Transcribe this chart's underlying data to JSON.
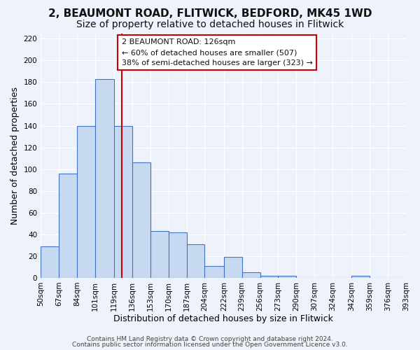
{
  "title_line1": "2, BEAUMONT ROAD, FLITWICK, BEDFORD, MK45 1WD",
  "title_line2": "Size of property relative to detached houses in Flitwick",
  "xlabel": "Distribution of detached houses by size in Flitwick",
  "ylabel": "Number of detached properties",
  "bar_values": [
    29,
    96,
    140,
    183,
    140,
    106,
    43,
    42,
    31,
    11,
    19,
    5,
    2,
    2,
    0,
    0,
    0,
    2,
    0,
    0
  ],
  "bin_edges": [
    50,
    67,
    84,
    101,
    119,
    136,
    153,
    170,
    187,
    204,
    222,
    239,
    256,
    273,
    290,
    307,
    324,
    342,
    359,
    376,
    393
  ],
  "tick_labels": [
    "50sqm",
    "67sqm",
    "84sqm",
    "101sqm",
    "119sqm",
    "136sqm",
    "153sqm",
    "170sqm",
    "187sqm",
    "204sqm",
    "222sqm",
    "239sqm",
    "256sqm",
    "273sqm",
    "290sqm",
    "307sqm",
    "324sqm",
    "342sqm",
    "359sqm",
    "376sqm",
    "393sqm"
  ],
  "bar_color": "#c6d9f0",
  "bar_edge_color": "#4472c4",
  "vline_x": 126,
  "vline_color": "#cc0000",
  "ylim": [
    0,
    225
  ],
  "yticks": [
    0,
    20,
    40,
    60,
    80,
    100,
    120,
    140,
    160,
    180,
    200,
    220
  ],
  "annotation_box_text": "2 BEAUMONT ROAD: 126sqm\n← 60% of detached houses are smaller (507)\n38% of semi-detached houses are larger (323) →",
  "footer_line1": "Contains HM Land Registry data © Crown copyright and database right 2024.",
  "footer_line2": "Contains public sector information licensed under the Open Government Licence v3.0.",
  "background_color": "#eef2fa",
  "grid_color": "#ffffff",
  "title_fontsize": 11,
  "subtitle_fontsize": 10,
  "axis_label_fontsize": 9,
  "tick_fontsize": 7.5,
  "footer_fontsize": 6.5
}
